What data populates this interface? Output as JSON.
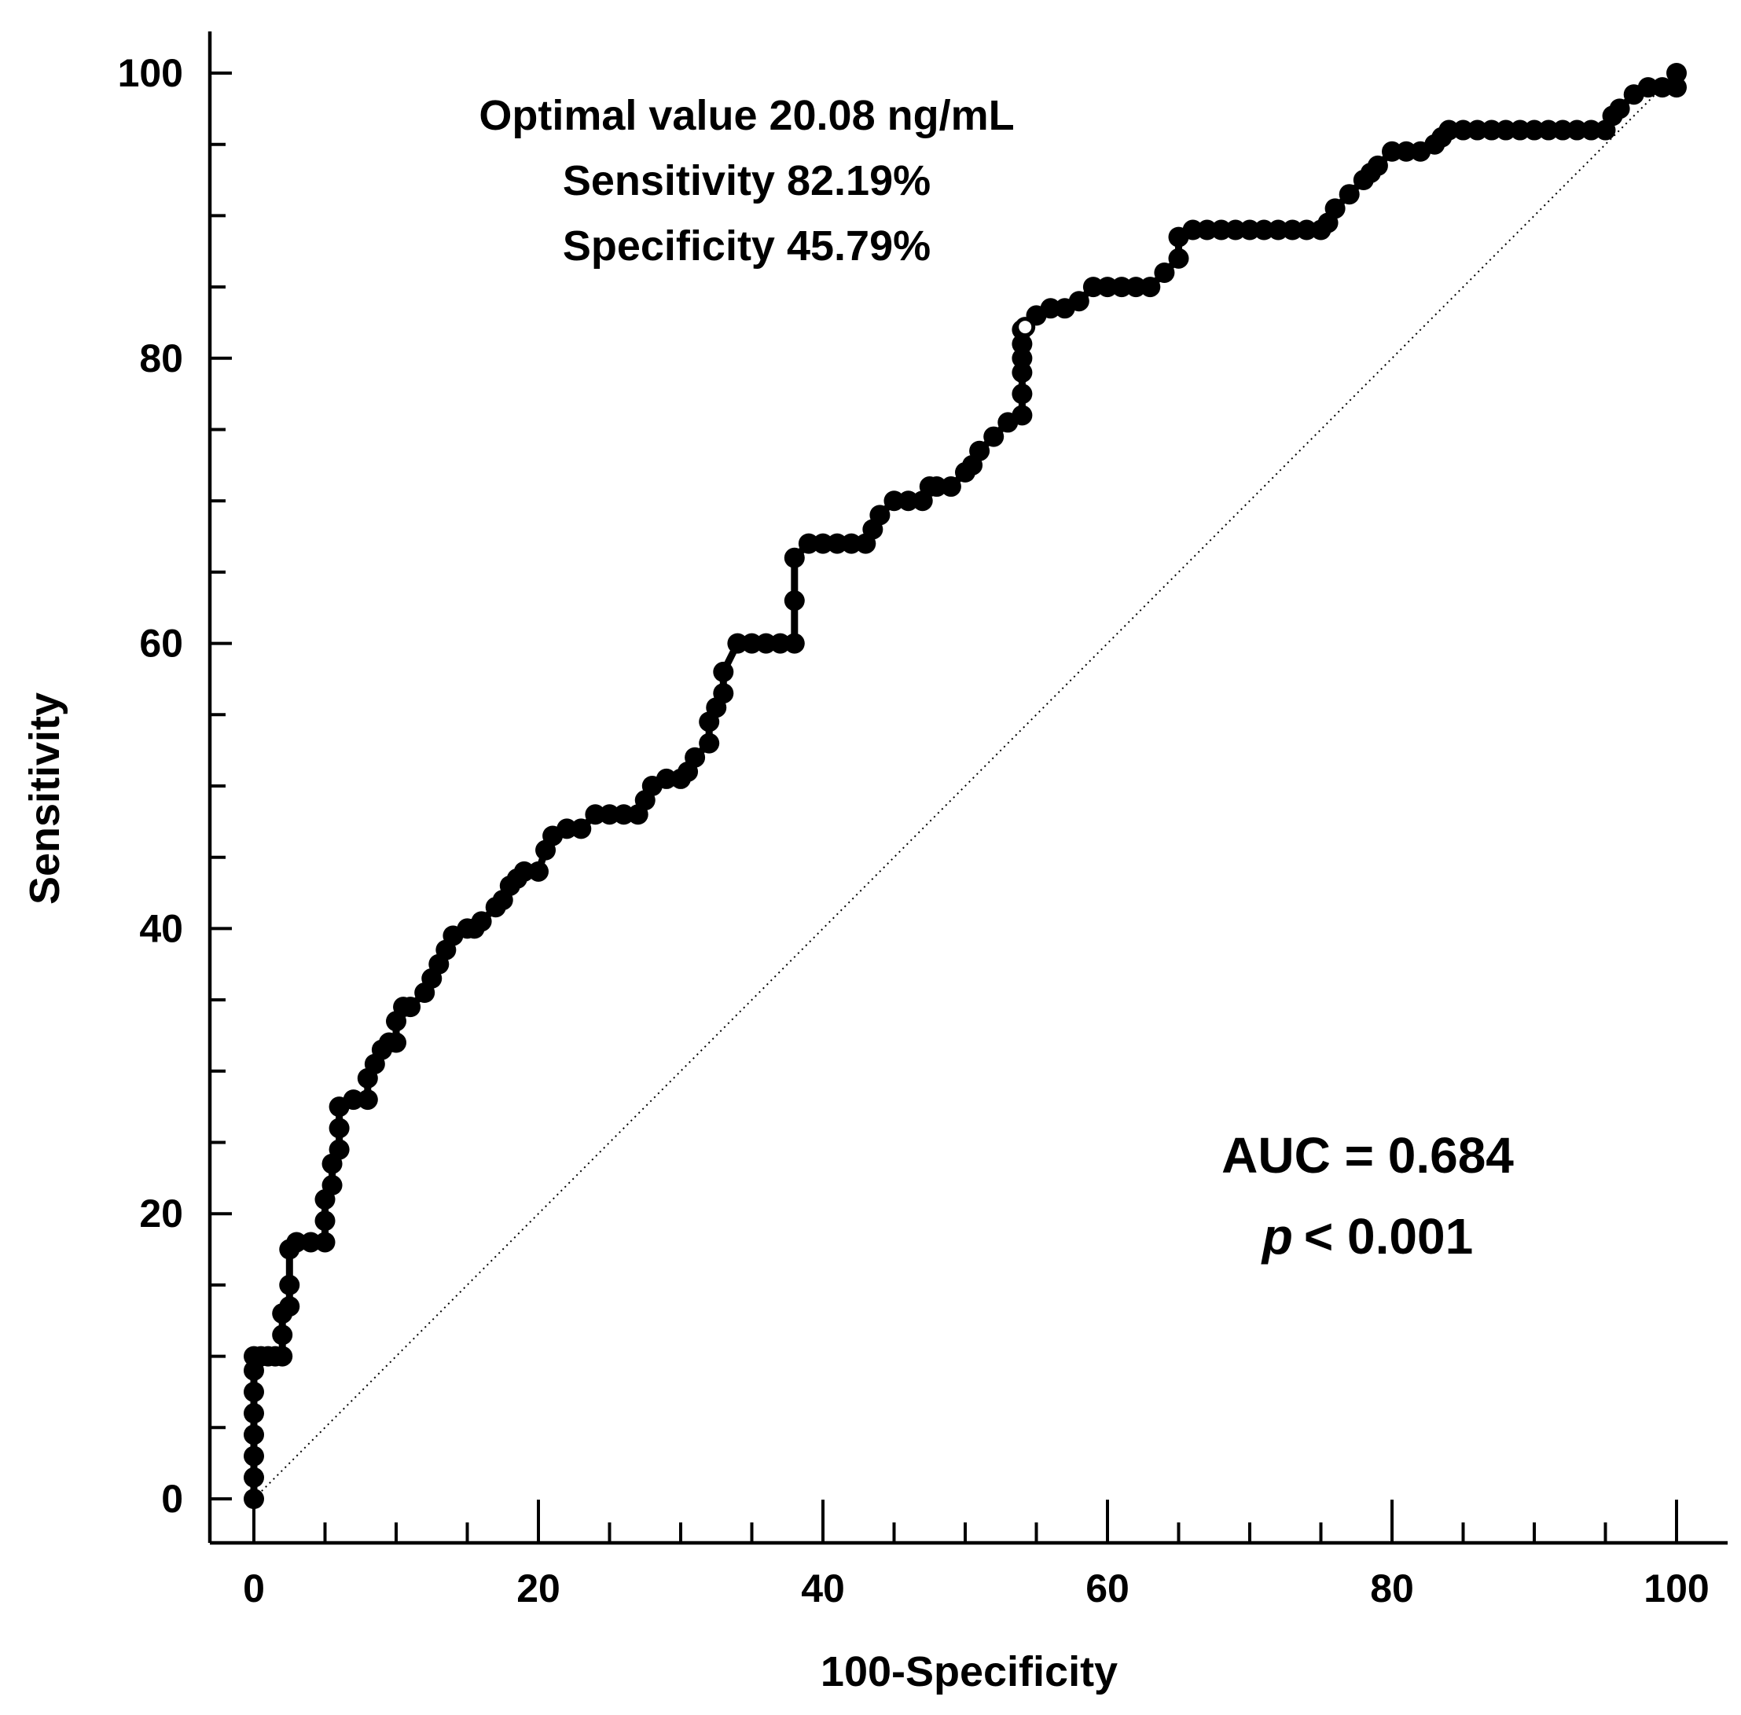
{
  "chart_data": {
    "type": "line",
    "chart_kind": "ROC curve",
    "xlabel": "100-Specificity",
    "ylabel": "Sensitivity",
    "xlim": [
      0,
      100
    ],
    "ylim": [
      0,
      100
    ],
    "x_ticks": [
      0,
      20,
      40,
      60,
      80,
      100
    ],
    "y_ticks": [
      0,
      20,
      40,
      60,
      80,
      100
    ],
    "x_tick_labels": [
      "0",
      "20",
      "40",
      "60",
      "80",
      "100"
    ],
    "y_tick_labels": [
      "0",
      "20",
      "40",
      "60",
      "80",
      "100"
    ],
    "minor_tick_step": 5,
    "grid": false,
    "annotations": {
      "optimal_value": "Optimal value 20.08 ng/mL",
      "sensitivity": "Sensitivity 82.19%",
      "specificity": "Specificity 45.79%",
      "auc": "AUC = 0.684",
      "p_symbol": "p",
      "p_rest": "< 0.001"
    },
    "optimal_point": {
      "x": 54.21,
      "y": 82.19
    },
    "reference_line": {
      "x": [
        0,
        100
      ],
      "y": [
        0,
        100
      ],
      "style": "dotted"
    },
    "series": [
      {
        "name": "ROC",
        "x": [
          0,
          0,
          0,
          0,
          0,
          0,
          0,
          0,
          0.5,
          1.0,
          1.5,
          2.0,
          2.0,
          2.0,
          2.5,
          2.5,
          2.5,
          3.0,
          4.0,
          5.0,
          5.0,
          5.0,
          5.5,
          5.5,
          6.0,
          6.0,
          6.0,
          7.0,
          8.0,
          8.0,
          8.5,
          9.0,
          9.5,
          10.0,
          10.0,
          10.5,
          11.0,
          12.0,
          12.5,
          13.0,
          13.5,
          14.0,
          15.0,
          15.5,
          16.0,
          17.0,
          17.5,
          18.0,
          18.5,
          19.0,
          20.0,
          20.5,
          21.0,
          22.0,
          23.0,
          24.0,
          25.0,
          26.0,
          27.0,
          27.5,
          28.0,
          29.0,
          30.0,
          30.5,
          31.0,
          32.0,
          32.0,
          32.5,
          33.0,
          33.0,
          34.0,
          35.0,
          36.0,
          37.0,
          38.0,
          38.0,
          38.0,
          39.0,
          40.0,
          41.0,
          42.0,
          43.0,
          43.5,
          44.0,
          45.0,
          46.0,
          47.0,
          47.5,
          48.0,
          49.0,
          50.0,
          50.5,
          51.0,
          52.0,
          53.0,
          54.0,
          54.0,
          54.0,
          54.0,
          54.0,
          54.0,
          54.21,
          55.0,
          56.0,
          57.0,
          58.0,
          59.0,
          60.0,
          61.0,
          62.0,
          63.0,
          64.0,
          65.0,
          65.0,
          66.0,
          67.0,
          68.0,
          69.0,
          70.0,
          71.0,
          72.0,
          73.0,
          74.0,
          75.0,
          75.5,
          76.0,
          77.0,
          78.0,
          78.5,
          79.0,
          80.0,
          81.0,
          82.0,
          83.0,
          83.5,
          84.0,
          85.0,
          86.0,
          87.0,
          88.0,
          89.0,
          90.0,
          91.0,
          92.0,
          93.0,
          94.0,
          95.0,
          95.5,
          96.0,
          97.0,
          98.0,
          99.0,
          100.0,
          100.0
        ],
        "y": [
          0,
          1.5,
          3,
          4.5,
          6,
          7.5,
          9,
          10,
          10,
          10,
          10,
          10,
          11.5,
          13,
          13.5,
          15,
          17.5,
          18,
          18,
          18,
          19.5,
          21,
          22,
          23.5,
          24.5,
          26,
          27.5,
          28,
          28,
          29.5,
          30.5,
          31.5,
          32,
          32,
          33.5,
          34.5,
          34.5,
          35.5,
          36.5,
          37.5,
          38.5,
          39.5,
          40,
          40,
          40.5,
          41.5,
          42,
          43,
          43.5,
          44,
          44,
          45.5,
          46.5,
          47,
          47,
          48,
          48,
          48,
          48,
          49,
          50,
          50.5,
          50.5,
          51,
          52,
          53,
          54.5,
          55.5,
          56.5,
          58,
          60,
          60,
          60,
          60,
          60,
          63,
          66,
          67,
          67,
          67,
          67,
          67,
          68,
          69,
          70,
          70,
          70,
          71,
          71,
          71,
          72,
          72.5,
          73.5,
          74.5,
          75.5,
          76,
          77.5,
          79,
          80,
          81,
          82,
          82.19,
          83,
          83.5,
          83.5,
          84,
          85,
          85,
          85,
          85,
          85,
          86,
          87,
          88.5,
          89,
          89,
          89,
          89,
          89,
          89,
          89,
          89,
          89,
          89,
          89.5,
          90.5,
          91.5,
          92.5,
          93,
          93.5,
          94.5,
          94.5,
          94.5,
          95,
          95.5,
          96,
          96,
          96,
          96,
          96,
          96,
          96,
          96,
          96,
          96,
          96,
          96,
          97,
          97.5,
          98.5,
          99,
          99,
          99,
          100
        ]
      }
    ]
  }
}
